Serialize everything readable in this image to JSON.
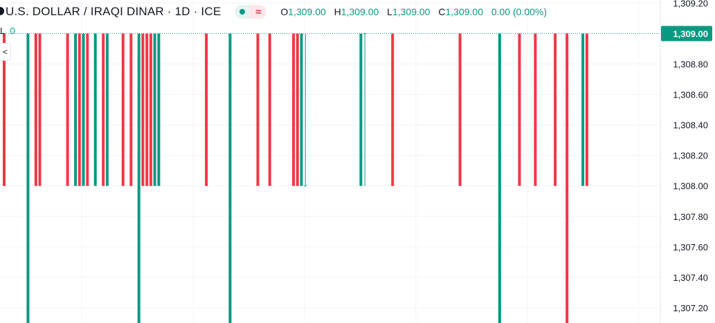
{
  "header": {
    "symbol_title": "U.S. DOLLAR / IRAQI DINAR · 1D · ICE",
    "ohlc": {
      "o_label": "O",
      "o_value": "1,309.00",
      "h_label": "H",
      "h_value": "1,309.00",
      "l_label": "L",
      "l_value": "1,309.00",
      "c_label": "C",
      "c_value": "1,309.00",
      "change": "0.00 (0.00%)"
    },
    "sub_label_key": "L",
    "sub_label_value": "0",
    "side_button_glyph": "<"
  },
  "colors": {
    "up": "#089981",
    "down": "#f23645",
    "grid": "#f0f3fa",
    "text": "#131722",
    "axis_border": "#e0e3eb"
  },
  "icons": [
    "live-status-icon",
    "approx-icon",
    "chevron-left-icon"
  ],
  "chart_data": {
    "type": "candlestick",
    "y_axis_side": "right",
    "ylim": [
      1307.1,
      1309.22
    ],
    "yticks": [
      1309.2,
      1308.8,
      1308.6,
      1308.4,
      1308.2,
      1308.0,
      1307.8,
      1307.6,
      1307.4,
      1307.2
    ],
    "ytick_labels": [
      "1,309.20",
      "1,308.80",
      "1,308.60",
      "1,308.40",
      "1,308.20",
      "1,308.00",
      "1,307.80",
      "1,307.60",
      "1,307.40",
      "1,307.20"
    ],
    "last_price": 1309.0,
    "last_price_label": "1,309.00",
    "candles": [
      {
        "i": 0,
        "open": 1309.0,
        "close": 1308.0
      },
      {
        "i": 6,
        "open": 1307.0,
        "close": 1309.0
      },
      {
        "i": 8,
        "open": 1309.0,
        "close": 1308.0
      },
      {
        "i": 9,
        "open": 1309.0,
        "close": 1308.0
      },
      {
        "i": 16,
        "open": 1309.0,
        "close": 1308.0
      },
      {
        "i": 18,
        "open": 1308.0,
        "close": 1309.0
      },
      {
        "i": 19,
        "open": 1309.0,
        "close": 1308.0
      },
      {
        "i": 20,
        "open": 1308.0,
        "close": 1309.0
      },
      {
        "i": 21,
        "open": 1309.0,
        "close": 1308.0
      },
      {
        "i": 23,
        "open": 1308.0,
        "close": 1309.0
      },
      {
        "i": 25,
        "open": 1309.0,
        "close": 1308.0
      },
      {
        "i": 26,
        "open": 1308.0,
        "close": 1309.0
      },
      {
        "i": 30,
        "open": 1309.0,
        "close": 1308.0
      },
      {
        "i": 32,
        "open": 1309.0,
        "close": 1308.0
      },
      {
        "i": 34,
        "open": 1307.0,
        "close": 1309.0
      },
      {
        "i": 35,
        "open": 1309.0,
        "close": 1308.0
      },
      {
        "i": 36,
        "open": 1309.0,
        "close": 1308.0
      },
      {
        "i": 37,
        "open": 1309.0,
        "close": 1308.0
      },
      {
        "i": 38,
        "open": 1308.0,
        "close": 1309.0
      },
      {
        "i": 39,
        "open": 1308.0,
        "close": 1309.0
      },
      {
        "i": 51,
        "open": 1309.0,
        "close": 1308.0
      },
      {
        "i": 57,
        "open": 1307.0,
        "close": 1309.0
      },
      {
        "i": 64,
        "open": 1309.0,
        "close": 1308.0
      },
      {
        "i": 67,
        "open": 1309.0,
        "close": 1308.0
      },
      {
        "i": 73,
        "open": 1309.0,
        "close": 1308.0
      },
      {
        "i": 74,
        "open": 1309.0,
        "close": 1308.0
      },
      {
        "i": 75,
        "open": 1308.0,
        "close": 1309.0
      },
      {
        "i": 90,
        "open": 1308.0,
        "close": 1309.0
      },
      {
        "i": 98,
        "open": 1309.0,
        "close": 1308.0
      },
      {
        "i": 115,
        "open": 1309.0,
        "close": 1308.0
      },
      {
        "i": 125,
        "open": 1307.0,
        "close": 1309.0
      },
      {
        "i": 130,
        "open": 1309.0,
        "close": 1308.0
      },
      {
        "i": 134,
        "open": 1309.0,
        "close": 1308.0
      },
      {
        "i": 139,
        "open": 1309.0,
        "close": 1308.0
      },
      {
        "i": 142,
        "open": 1309.0,
        "close": 1307.0
      },
      {
        "i": 146,
        "open": 1308.0,
        "close": 1309.0
      },
      {
        "i": 147,
        "open": 1309.0,
        "close": 1308.0
      }
    ],
    "thin_candles": [
      {
        "i": 76,
        "value": 1308.0
      },
      {
        "i": 91,
        "value": 1309.0
      }
    ]
  }
}
